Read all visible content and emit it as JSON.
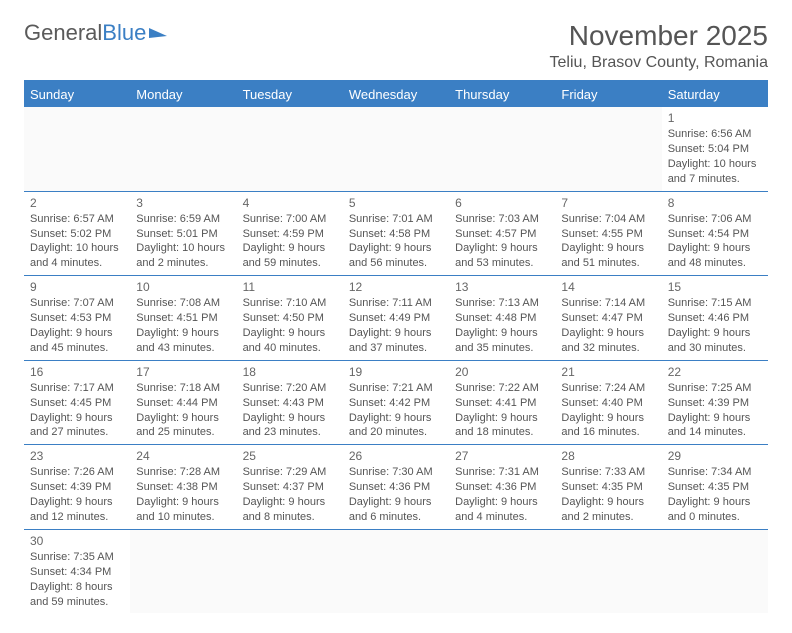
{
  "logo": {
    "text1": "General",
    "text2": "Blue"
  },
  "title": "November 2025",
  "location": "Teliu, Brasov County, Romania",
  "colors": {
    "accent": "#3b7fc4",
    "text": "#555555",
    "bg": "#ffffff"
  },
  "weekdays": [
    "Sunday",
    "Monday",
    "Tuesday",
    "Wednesday",
    "Thursday",
    "Friday",
    "Saturday"
  ],
  "weeks": [
    [
      null,
      null,
      null,
      null,
      null,
      null,
      {
        "n": "1",
        "sr": "Sunrise: 6:56 AM",
        "ss": "Sunset: 5:04 PM",
        "dl1": "Daylight: 10 hours",
        "dl2": "and 7 minutes."
      }
    ],
    [
      {
        "n": "2",
        "sr": "Sunrise: 6:57 AM",
        "ss": "Sunset: 5:02 PM",
        "dl1": "Daylight: 10 hours",
        "dl2": "and 4 minutes."
      },
      {
        "n": "3",
        "sr": "Sunrise: 6:59 AM",
        "ss": "Sunset: 5:01 PM",
        "dl1": "Daylight: 10 hours",
        "dl2": "and 2 minutes."
      },
      {
        "n": "4",
        "sr": "Sunrise: 7:00 AM",
        "ss": "Sunset: 4:59 PM",
        "dl1": "Daylight: 9 hours",
        "dl2": "and 59 minutes."
      },
      {
        "n": "5",
        "sr": "Sunrise: 7:01 AM",
        "ss": "Sunset: 4:58 PM",
        "dl1": "Daylight: 9 hours",
        "dl2": "and 56 minutes."
      },
      {
        "n": "6",
        "sr": "Sunrise: 7:03 AM",
        "ss": "Sunset: 4:57 PM",
        "dl1": "Daylight: 9 hours",
        "dl2": "and 53 minutes."
      },
      {
        "n": "7",
        "sr": "Sunrise: 7:04 AM",
        "ss": "Sunset: 4:55 PM",
        "dl1": "Daylight: 9 hours",
        "dl2": "and 51 minutes."
      },
      {
        "n": "8",
        "sr": "Sunrise: 7:06 AM",
        "ss": "Sunset: 4:54 PM",
        "dl1": "Daylight: 9 hours",
        "dl2": "and 48 minutes."
      }
    ],
    [
      {
        "n": "9",
        "sr": "Sunrise: 7:07 AM",
        "ss": "Sunset: 4:53 PM",
        "dl1": "Daylight: 9 hours",
        "dl2": "and 45 minutes."
      },
      {
        "n": "10",
        "sr": "Sunrise: 7:08 AM",
        "ss": "Sunset: 4:51 PM",
        "dl1": "Daylight: 9 hours",
        "dl2": "and 43 minutes."
      },
      {
        "n": "11",
        "sr": "Sunrise: 7:10 AM",
        "ss": "Sunset: 4:50 PM",
        "dl1": "Daylight: 9 hours",
        "dl2": "and 40 minutes."
      },
      {
        "n": "12",
        "sr": "Sunrise: 7:11 AM",
        "ss": "Sunset: 4:49 PM",
        "dl1": "Daylight: 9 hours",
        "dl2": "and 37 minutes."
      },
      {
        "n": "13",
        "sr": "Sunrise: 7:13 AM",
        "ss": "Sunset: 4:48 PM",
        "dl1": "Daylight: 9 hours",
        "dl2": "and 35 minutes."
      },
      {
        "n": "14",
        "sr": "Sunrise: 7:14 AM",
        "ss": "Sunset: 4:47 PM",
        "dl1": "Daylight: 9 hours",
        "dl2": "and 32 minutes."
      },
      {
        "n": "15",
        "sr": "Sunrise: 7:15 AM",
        "ss": "Sunset: 4:46 PM",
        "dl1": "Daylight: 9 hours",
        "dl2": "and 30 minutes."
      }
    ],
    [
      {
        "n": "16",
        "sr": "Sunrise: 7:17 AM",
        "ss": "Sunset: 4:45 PM",
        "dl1": "Daylight: 9 hours",
        "dl2": "and 27 minutes."
      },
      {
        "n": "17",
        "sr": "Sunrise: 7:18 AM",
        "ss": "Sunset: 4:44 PM",
        "dl1": "Daylight: 9 hours",
        "dl2": "and 25 minutes."
      },
      {
        "n": "18",
        "sr": "Sunrise: 7:20 AM",
        "ss": "Sunset: 4:43 PM",
        "dl1": "Daylight: 9 hours",
        "dl2": "and 23 minutes."
      },
      {
        "n": "19",
        "sr": "Sunrise: 7:21 AM",
        "ss": "Sunset: 4:42 PM",
        "dl1": "Daylight: 9 hours",
        "dl2": "and 20 minutes."
      },
      {
        "n": "20",
        "sr": "Sunrise: 7:22 AM",
        "ss": "Sunset: 4:41 PM",
        "dl1": "Daylight: 9 hours",
        "dl2": "and 18 minutes."
      },
      {
        "n": "21",
        "sr": "Sunrise: 7:24 AM",
        "ss": "Sunset: 4:40 PM",
        "dl1": "Daylight: 9 hours",
        "dl2": "and 16 minutes."
      },
      {
        "n": "22",
        "sr": "Sunrise: 7:25 AM",
        "ss": "Sunset: 4:39 PM",
        "dl1": "Daylight: 9 hours",
        "dl2": "and 14 minutes."
      }
    ],
    [
      {
        "n": "23",
        "sr": "Sunrise: 7:26 AM",
        "ss": "Sunset: 4:39 PM",
        "dl1": "Daylight: 9 hours",
        "dl2": "and 12 minutes."
      },
      {
        "n": "24",
        "sr": "Sunrise: 7:28 AM",
        "ss": "Sunset: 4:38 PM",
        "dl1": "Daylight: 9 hours",
        "dl2": "and 10 minutes."
      },
      {
        "n": "25",
        "sr": "Sunrise: 7:29 AM",
        "ss": "Sunset: 4:37 PM",
        "dl1": "Daylight: 9 hours",
        "dl2": "and 8 minutes."
      },
      {
        "n": "26",
        "sr": "Sunrise: 7:30 AM",
        "ss": "Sunset: 4:36 PM",
        "dl1": "Daylight: 9 hours",
        "dl2": "and 6 minutes."
      },
      {
        "n": "27",
        "sr": "Sunrise: 7:31 AM",
        "ss": "Sunset: 4:36 PM",
        "dl1": "Daylight: 9 hours",
        "dl2": "and 4 minutes."
      },
      {
        "n": "28",
        "sr": "Sunrise: 7:33 AM",
        "ss": "Sunset: 4:35 PM",
        "dl1": "Daylight: 9 hours",
        "dl2": "and 2 minutes."
      },
      {
        "n": "29",
        "sr": "Sunrise: 7:34 AM",
        "ss": "Sunset: 4:35 PM",
        "dl1": "Daylight: 9 hours",
        "dl2": "and 0 minutes."
      }
    ],
    [
      {
        "n": "30",
        "sr": "Sunrise: 7:35 AM",
        "ss": "Sunset: 4:34 PM",
        "dl1": "Daylight: 8 hours",
        "dl2": "and 59 minutes."
      },
      null,
      null,
      null,
      null,
      null,
      null
    ]
  ]
}
